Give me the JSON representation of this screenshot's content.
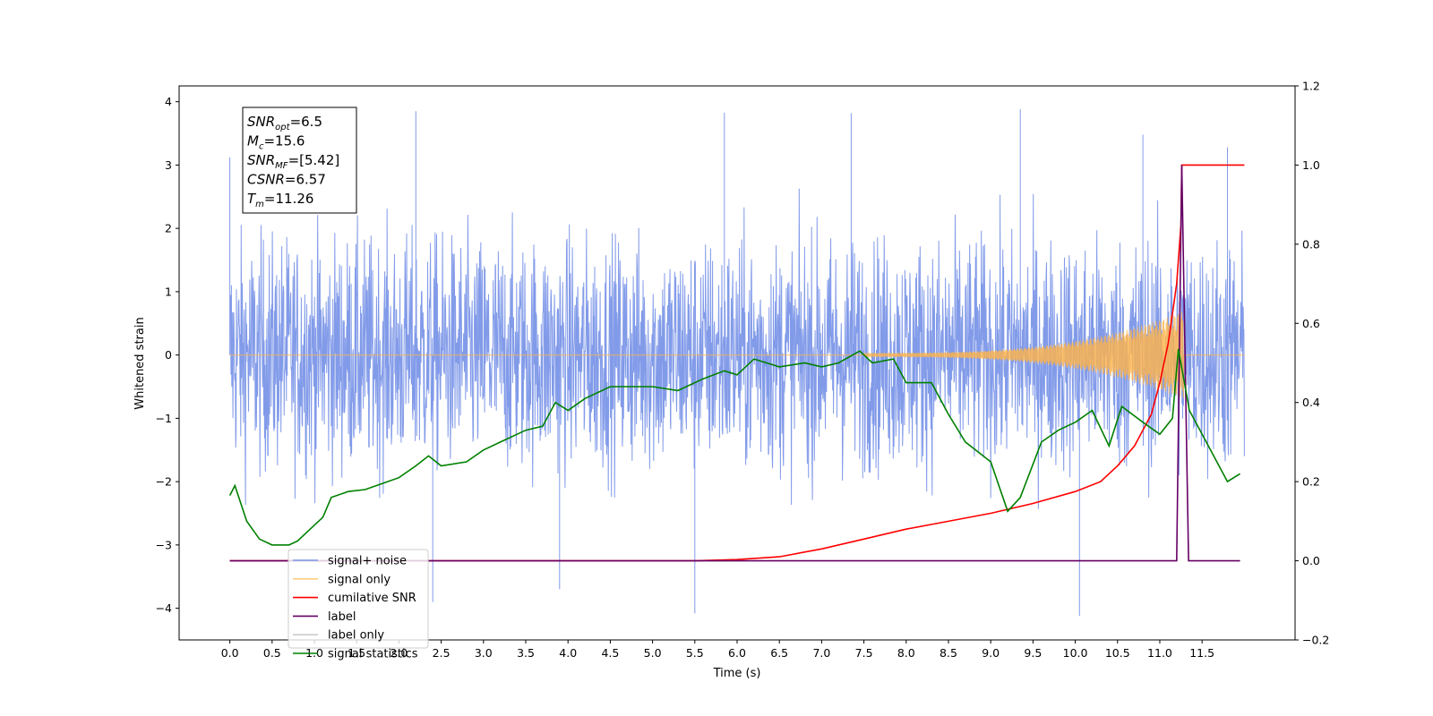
{
  "chart_data": {
    "type": "line",
    "xlabel": "Time (s)",
    "ylabel": "Whitened strain",
    "xlim": [
      -0.6,
      12.6
    ],
    "ylim": [
      -4.5,
      4.25
    ],
    "y2lim": [
      -0.2,
      1.2
    ],
    "x_ticks": [
      0.0,
      0.5,
      1.0,
      1.5,
      2.0,
      2.5,
      3.0,
      3.5,
      4.0,
      4.5,
      5.0,
      5.5,
      6.0,
      6.5,
      7.0,
      7.5,
      8.0,
      8.5,
      9.0,
      9.5,
      10.0,
      10.5,
      11.0,
      11.5
    ],
    "x_tick_labels": [
      "0.0",
      "0.5",
      "1.0",
      "1.5",
      "2.0",
      "2.5",
      "3.0",
      "3.5",
      "4.0",
      "4.5",
      "5.0",
      "5.5",
      "6.0",
      "6.5",
      "7.0",
      "7.5",
      "8.0",
      "8.5",
      "9.0",
      "9.5",
      "10.0",
      "10.5",
      "11.0",
      "11.5"
    ],
    "y_ticks": [
      -4,
      -3,
      -2,
      -1,
      0,
      1,
      2,
      3,
      4
    ],
    "y_tick_labels": [
      "−4",
      "−3",
      "−2",
      "−1",
      "0",
      "1",
      "2",
      "3",
      "4"
    ],
    "y2_ticks": [
      -0.2,
      0.0,
      0.2,
      0.4,
      0.6,
      0.8,
      1.0,
      1.2
    ],
    "y2_tick_labels": [
      "−0.2",
      "0.0",
      "0.2",
      "0.4",
      "0.6",
      "0.8",
      "1.0",
      "1.2"
    ],
    "grid": false,
    "legend_placement": "lower-left",
    "annotation": {
      "lines": [
        {
          "sym": "SNR",
          "sub": "opt",
          "text": "=6.5"
        },
        {
          "sym": "M",
          "sub": "c",
          "text": "=15.6"
        },
        {
          "sym": "SNR",
          "sub": "MF",
          "text": "=[5.42]"
        },
        {
          "sym": "CSNR",
          "sub": "",
          "text": "=6.57"
        },
        {
          "sym": "T",
          "sub": "m",
          "text": "=11.26"
        }
      ]
    },
    "series": [
      {
        "name": "signal+ noise",
        "axis": "left",
        "color": "#7b96e8",
        "description_of_values": "white noise, approx. uniform band between -2.5 and 2.5 with spikes up to 3.9 and down to -4.1",
        "noise_band": [
          -2.5,
          2.5
        ],
        "x_range": [
          0.0,
          12.0
        ],
        "peaks": [
          [
            0.0,
            3.12
          ],
          [
            2.2,
            3.85
          ],
          [
            5.5,
            -4.08
          ],
          [
            5.85,
            3.83
          ],
          [
            7.35,
            3.82
          ],
          [
            9.35,
            3.88
          ],
          [
            10.05,
            -4.12
          ],
          [
            10.8,
            3.48
          ],
          [
            11.8,
            3.28
          ],
          [
            3.9,
            -3.7
          ],
          [
            2.4,
            -3.9
          ]
        ]
      },
      {
        "name": "signal only",
        "axis": "left",
        "color": "#ffb347",
        "x_range": [
          0.0,
          12.0
        ],
        "chirp_start": 7.5,
        "chirp_end": 11.26,
        "max_amplitude": 0.65
      },
      {
        "name": "cumilative SNR",
        "axis": "right",
        "color": "#ff0000",
        "x": [
          0.0,
          5.5,
          6.0,
          6.5,
          7.0,
          7.5,
          8.0,
          8.5,
          9.0,
          9.5,
          10.0,
          10.3,
          10.5,
          10.7,
          10.9,
          11.0,
          11.1,
          11.2,
          11.25,
          11.26,
          12.0
        ],
        "values": [
          0.0,
          0.0,
          0.003,
          0.01,
          0.03,
          0.055,
          0.08,
          0.1,
          0.12,
          0.145,
          0.175,
          0.2,
          0.24,
          0.29,
          0.37,
          0.45,
          0.55,
          0.7,
          0.85,
          1.0,
          1.0
        ]
      },
      {
        "name": "label",
        "axis": "right",
        "color": "#660066",
        "x": [
          0.0,
          11.2,
          11.26,
          11.34,
          11.95
        ],
        "values": [
          0.0,
          0.0,
          1.0,
          0.0,
          0.0
        ]
      },
      {
        "name": "label only",
        "axis": "right",
        "color": "#cccccc",
        "x": [],
        "values": []
      },
      {
        "name": "signal statistics",
        "axis": "right",
        "color": "#008000",
        "x": [
          0.0,
          0.06,
          0.2,
          0.35,
          0.5,
          0.7,
          0.8,
          0.95,
          1.1,
          1.2,
          1.4,
          1.6,
          1.8,
          2.0,
          2.2,
          2.35,
          2.5,
          2.8,
          3.0,
          3.2,
          3.5,
          3.7,
          3.85,
          4.0,
          4.2,
          4.5,
          4.8,
          5.0,
          5.3,
          5.6,
          5.85,
          6.0,
          6.2,
          6.5,
          6.8,
          7.0,
          7.2,
          7.45,
          7.6,
          7.85,
          8.0,
          8.3,
          8.5,
          8.7,
          9.0,
          9.2,
          9.35,
          9.6,
          9.8,
          10.0,
          10.2,
          10.4,
          10.55,
          10.8,
          11.0,
          11.15,
          11.22,
          11.35,
          11.6,
          11.8,
          11.95
        ],
        "values": [
          0.165,
          0.19,
          0.1,
          0.055,
          0.04,
          0.04,
          0.05,
          0.08,
          0.11,
          0.16,
          0.175,
          0.18,
          0.195,
          0.21,
          0.24,
          0.265,
          0.24,
          0.25,
          0.28,
          0.3,
          0.33,
          0.34,
          0.4,
          0.38,
          0.41,
          0.44,
          0.44,
          0.44,
          0.43,
          0.46,
          0.48,
          0.47,
          0.51,
          0.49,
          0.5,
          0.49,
          0.5,
          0.53,
          0.5,
          0.51,
          0.45,
          0.45,
          0.37,
          0.3,
          0.25,
          0.125,
          0.16,
          0.3,
          0.33,
          0.35,
          0.38,
          0.29,
          0.39,
          0.35,
          0.32,
          0.36,
          0.535,
          0.38,
          0.28,
          0.2,
          0.22
        ]
      }
    ]
  },
  "legend": {
    "items": [
      {
        "name": "signal+ noise",
        "color": "#7b96e8"
      },
      {
        "name": "signal only",
        "color": "#ffcc80"
      },
      {
        "name": "cumilative SNR",
        "color": "#ff0000"
      },
      {
        "name": "label",
        "color": "#660066"
      },
      {
        "name": "label only",
        "color": "#cccccc"
      },
      {
        "name": "signal statistics",
        "color": "#008000"
      }
    ]
  }
}
